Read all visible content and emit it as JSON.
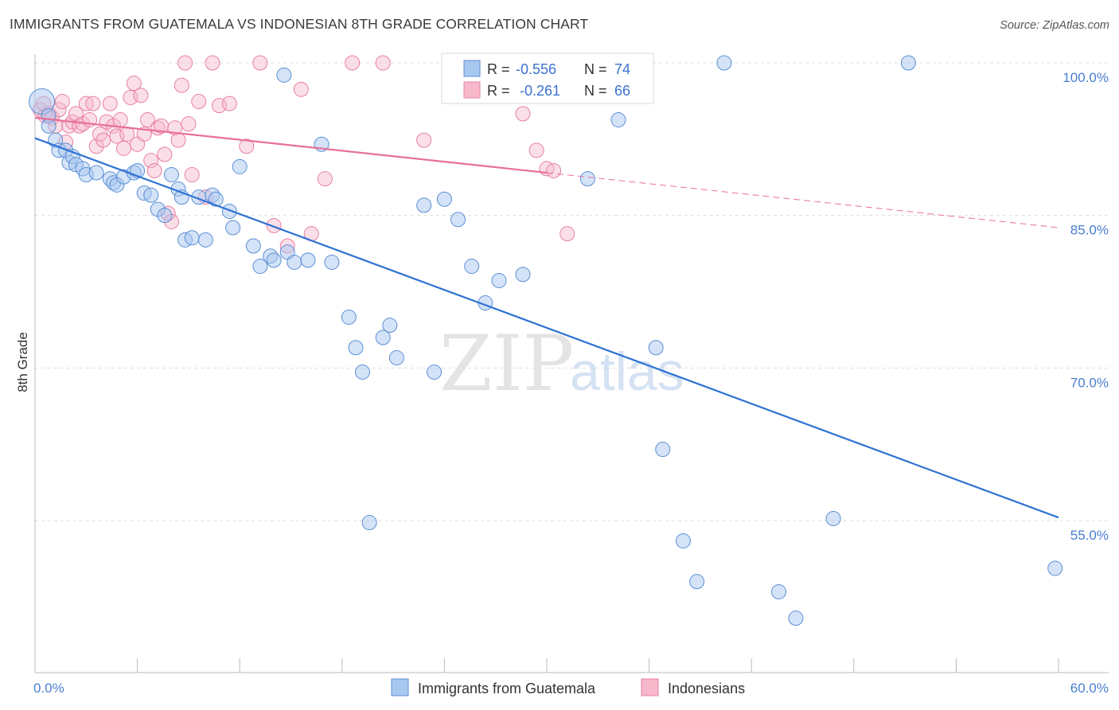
{
  "header": {
    "title": "IMMIGRANTS FROM GUATEMALA VS INDONESIAN 8TH GRADE CORRELATION CHART",
    "source": "Source: ZipAtlas.com"
  },
  "watermark": {
    "part1": "ZIP",
    "part2": "atlas"
  },
  "legend_top": {
    "rows": [
      {
        "r_label": "R = ",
        "r_value": "-0.556",
        "n_label": "N = ",
        "n_value": "74"
      },
      {
        "r_label": "R = ",
        "r_value": " -0.261",
        "n_label": "N = ",
        "n_value": "66"
      }
    ]
  },
  "legend_bottom": {
    "items": [
      "Immigrants from Guatemala",
      "Indonesians"
    ]
  },
  "colors": {
    "blue_fill": "#a9c8f0",
    "blue_stroke": "#5b8fd6",
    "blue_line": "#2f72d4",
    "pink_fill": "#f7b8cb",
    "pink_stroke": "#e87fa3",
    "pink_line": "#e8709a",
    "tick_text": "#4a7fd0",
    "grid": "#dddddd"
  },
  "chart_data": {
    "type": "scatter",
    "title": "IMMIGRANTS FROM GUATEMALA VS INDONESIAN 8TH GRADE CORRELATION CHART",
    "xlabel": "",
    "ylabel": "8th Grade",
    "xlim": [
      0,
      60
    ],
    "ylim": [
      40,
      102
    ],
    "x_tick_labels": [
      "0.0%",
      "60.0%"
    ],
    "y_tick_labels": [
      "100.0%",
      "85.0%",
      "70.0%",
      "55.0%"
    ],
    "y_tick_values": [
      100,
      85,
      70,
      55
    ],
    "grid": true,
    "legend_position": "top-center",
    "series": [
      {
        "name": "Immigrants from Guatemala",
        "r": -0.556,
        "n": 74,
        "trend": {
          "x": [
            0,
            60
          ],
          "y": [
            92.6,
            55.3
          ]
        },
        "points": [
          [
            0.4,
            96.2
          ],
          [
            0.8,
            94.8
          ],
          [
            0.8,
            93.8
          ],
          [
            1.2,
            92.4
          ],
          [
            1.4,
            91.4
          ],
          [
            1.8,
            91.4
          ],
          [
            2.0,
            90.2
          ],
          [
            2.2,
            90.8
          ],
          [
            2.4,
            90.0
          ],
          [
            2.8,
            89.6
          ],
          [
            3.0,
            89.0
          ],
          [
            3.6,
            89.2
          ],
          [
            4.4,
            88.6
          ],
          [
            4.6,
            88.2
          ],
          [
            4.8,
            88.0
          ],
          [
            5.2,
            88.8
          ],
          [
            5.8,
            89.2
          ],
          [
            6.0,
            89.4
          ],
          [
            6.4,
            87.2
          ],
          [
            6.8,
            87.0
          ],
          [
            7.2,
            85.6
          ],
          [
            7.6,
            85.0
          ],
          [
            8.0,
            89.0
          ],
          [
            8.4,
            87.6
          ],
          [
            8.6,
            86.8
          ],
          [
            8.8,
            82.6
          ],
          [
            9.2,
            82.8
          ],
          [
            9.6,
            86.8
          ],
          [
            10.0,
            82.6
          ],
          [
            10.4,
            87.0
          ],
          [
            10.6,
            86.6
          ],
          [
            11.4,
            85.4
          ],
          [
            11.6,
            83.8
          ],
          [
            12.0,
            89.8
          ],
          [
            12.8,
            82.0
          ],
          [
            13.2,
            80.0
          ],
          [
            13.8,
            81.0
          ],
          [
            14.0,
            80.6
          ],
          [
            14.6,
            98.8
          ],
          [
            14.8,
            81.4
          ],
          [
            15.2,
            80.4
          ],
          [
            16.0,
            80.6
          ],
          [
            16.8,
            92.0
          ],
          [
            17.4,
            80.4
          ],
          [
            18.4,
            75.0
          ],
          [
            18.8,
            72.0
          ],
          [
            19.2,
            69.6
          ],
          [
            19.6,
            54.8
          ],
          [
            20.4,
            73.0
          ],
          [
            20.8,
            74.2
          ],
          [
            21.2,
            71.0
          ],
          [
            22.8,
            86.0
          ],
          [
            23.4,
            69.6
          ],
          [
            24.0,
            86.6
          ],
          [
            24.8,
            84.6
          ],
          [
            25.6,
            80.0
          ],
          [
            26.4,
            76.4
          ],
          [
            27.2,
            78.6
          ],
          [
            28.6,
            79.2
          ],
          [
            30.2,
            100.0
          ],
          [
            30.6,
            100.0
          ],
          [
            32.4,
            88.6
          ],
          [
            33.6,
            97.4
          ],
          [
            34.2,
            94.4
          ],
          [
            36.4,
            72.0
          ],
          [
            36.8,
            62.0
          ],
          [
            38.0,
            53.0
          ],
          [
            38.8,
            49.0
          ],
          [
            40.4,
            100.0
          ],
          [
            43.6,
            48.0
          ],
          [
            44.6,
            45.4
          ],
          [
            46.8,
            55.2
          ],
          [
            51.2,
            100.0
          ],
          [
            59.8,
            50.3
          ]
        ]
      },
      {
        "name": "Indonesians",
        "r": -0.261,
        "n": 66,
        "trend": {
          "x": [
            0,
            30
          ],
          "y": [
            94.6,
            89.2
          ]
        },
        "trend_dashed": {
          "x": [
            30,
            60
          ],
          "y": [
            89.2,
            83.8
          ]
        },
        "points": [
          [
            0.3,
            95.4
          ],
          [
            0.5,
            96.0
          ],
          [
            0.6,
            94.8
          ],
          [
            0.8,
            95.0
          ],
          [
            1.0,
            94.6
          ],
          [
            1.2,
            93.8
          ],
          [
            1.4,
            95.4
          ],
          [
            1.6,
            96.2
          ],
          [
            1.8,
            92.2
          ],
          [
            2.0,
            93.8
          ],
          [
            2.2,
            94.2
          ],
          [
            2.4,
            95.0
          ],
          [
            2.6,
            93.8
          ],
          [
            2.8,
            94.0
          ],
          [
            3.0,
            96.0
          ],
          [
            3.2,
            94.4
          ],
          [
            3.4,
            96.0
          ],
          [
            3.6,
            91.8
          ],
          [
            3.8,
            93.0
          ],
          [
            4.0,
            92.4
          ],
          [
            4.2,
            94.2
          ],
          [
            4.4,
            96.0
          ],
          [
            4.6,
            93.8
          ],
          [
            4.8,
            92.8
          ],
          [
            5.0,
            94.4
          ],
          [
            5.2,
            91.6
          ],
          [
            5.4,
            93.0
          ],
          [
            5.6,
            96.6
          ],
          [
            5.8,
            98.0
          ],
          [
            6.0,
            92.0
          ],
          [
            6.2,
            96.8
          ],
          [
            6.4,
            93.0
          ],
          [
            6.6,
            94.4
          ],
          [
            6.8,
            90.4
          ],
          [
            7.0,
            89.4
          ],
          [
            7.2,
            93.6
          ],
          [
            7.4,
            93.8
          ],
          [
            7.6,
            91.0
          ],
          [
            7.8,
            85.2
          ],
          [
            8.0,
            84.4
          ],
          [
            8.2,
            93.6
          ],
          [
            8.4,
            92.4
          ],
          [
            8.6,
            97.8
          ],
          [
            8.8,
            100.0
          ],
          [
            9.0,
            94.0
          ],
          [
            9.2,
            89.0
          ],
          [
            9.6,
            96.2
          ],
          [
            10.0,
            86.8
          ],
          [
            10.4,
            100.0
          ],
          [
            10.8,
            95.8
          ],
          [
            11.4,
            96.0
          ],
          [
            12.4,
            91.8
          ],
          [
            13.2,
            100.0
          ],
          [
            14.0,
            84.0
          ],
          [
            14.8,
            82.0
          ],
          [
            15.6,
            97.4
          ],
          [
            16.2,
            83.2
          ],
          [
            17.0,
            88.6
          ],
          [
            18.6,
            100.0
          ],
          [
            20.4,
            100.0
          ],
          [
            22.8,
            92.4
          ],
          [
            28.6,
            95.0
          ],
          [
            29.4,
            91.4
          ],
          [
            30.0,
            89.6
          ],
          [
            30.4,
            89.4
          ],
          [
            31.2,
            83.2
          ]
        ]
      }
    ]
  }
}
